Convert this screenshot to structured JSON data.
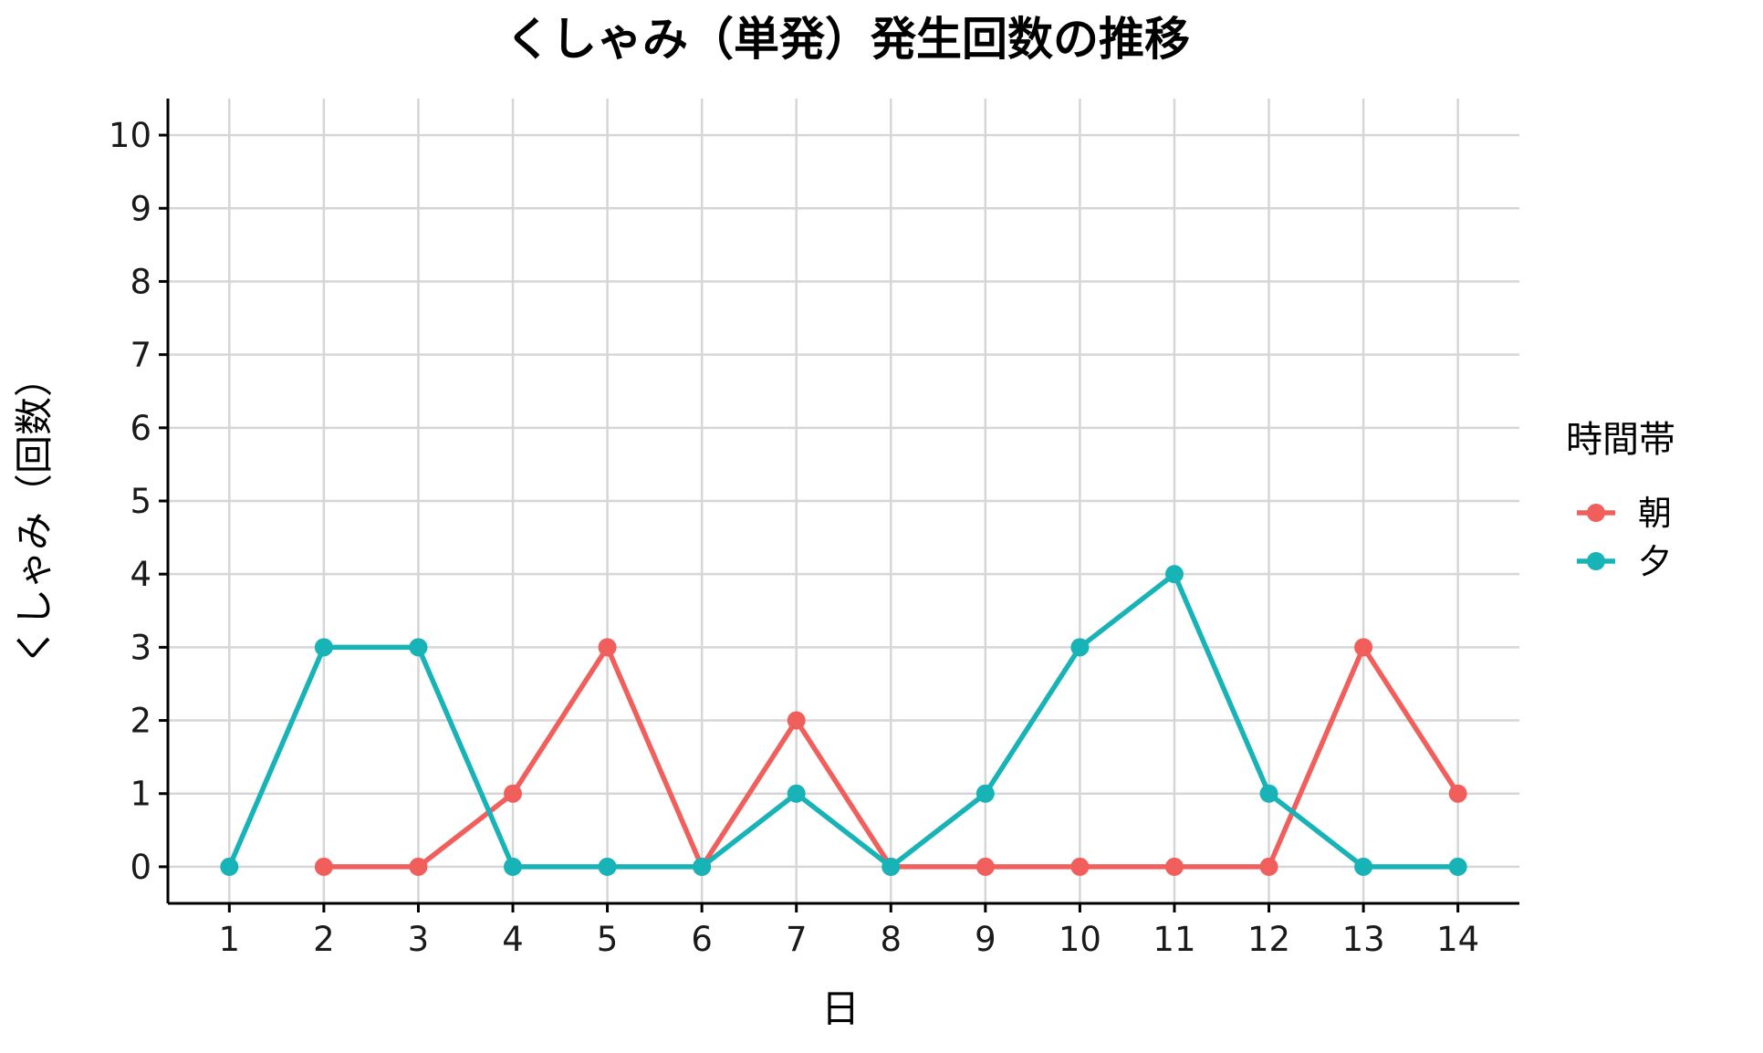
{
  "chart_data": {
    "type": "line",
    "title": "くしゃみ（単発）発生回数の推移",
    "xlabel": "日",
    "ylabel": "くしゃみ（回数）",
    "x": [
      1,
      2,
      3,
      4,
      5,
      6,
      7,
      8,
      9,
      10,
      11,
      12,
      13,
      14
    ],
    "xlim": [
      0.35,
      14.65
    ],
    "ylim": [
      -0.5,
      10.5
    ],
    "xticks": [
      1,
      2,
      3,
      4,
      5,
      6,
      7,
      8,
      9,
      10,
      11,
      12,
      13,
      14
    ],
    "yticks": [
      0,
      1,
      2,
      3,
      4,
      5,
      6,
      7,
      8,
      9,
      10
    ],
    "grid": true,
    "legend": {
      "title": "時間帯",
      "position": "right"
    },
    "series": [
      {
        "name": "朝",
        "color": "#F15F5C",
        "points": [
          {
            "x": 2,
            "y": 0
          },
          {
            "x": 3,
            "y": 0
          },
          {
            "x": 4,
            "y": 1
          },
          {
            "x": 5,
            "y": 3
          },
          {
            "x": 6,
            "y": 0
          },
          {
            "x": 7,
            "y": 2
          },
          {
            "x": 8,
            "y": 0
          },
          {
            "x": 9,
            "y": 0
          },
          {
            "x": 10,
            "y": 0
          },
          {
            "x": 11,
            "y": 0
          },
          {
            "x": 12,
            "y": 0
          },
          {
            "x": 13,
            "y": 3
          },
          {
            "x": 14,
            "y": 1
          }
        ]
      },
      {
        "name": "夕",
        "color": "#17B3B7",
        "points": [
          {
            "x": 1,
            "y": 0
          },
          {
            "x": 2,
            "y": 3
          },
          {
            "x": 3,
            "y": 3
          },
          {
            "x": 4,
            "y": 0
          },
          {
            "x": 5,
            "y": 0
          },
          {
            "x": 6,
            "y": 0
          },
          {
            "x": 7,
            "y": 1
          },
          {
            "x": 8,
            "y": 0
          },
          {
            "x": 9,
            "y": 1
          },
          {
            "x": 10,
            "y": 3
          },
          {
            "x": 11,
            "y": 4
          },
          {
            "x": 12,
            "y": 1
          },
          {
            "x": 13,
            "y": 0
          },
          {
            "x": 14,
            "y": 0
          }
        ]
      }
    ]
  }
}
